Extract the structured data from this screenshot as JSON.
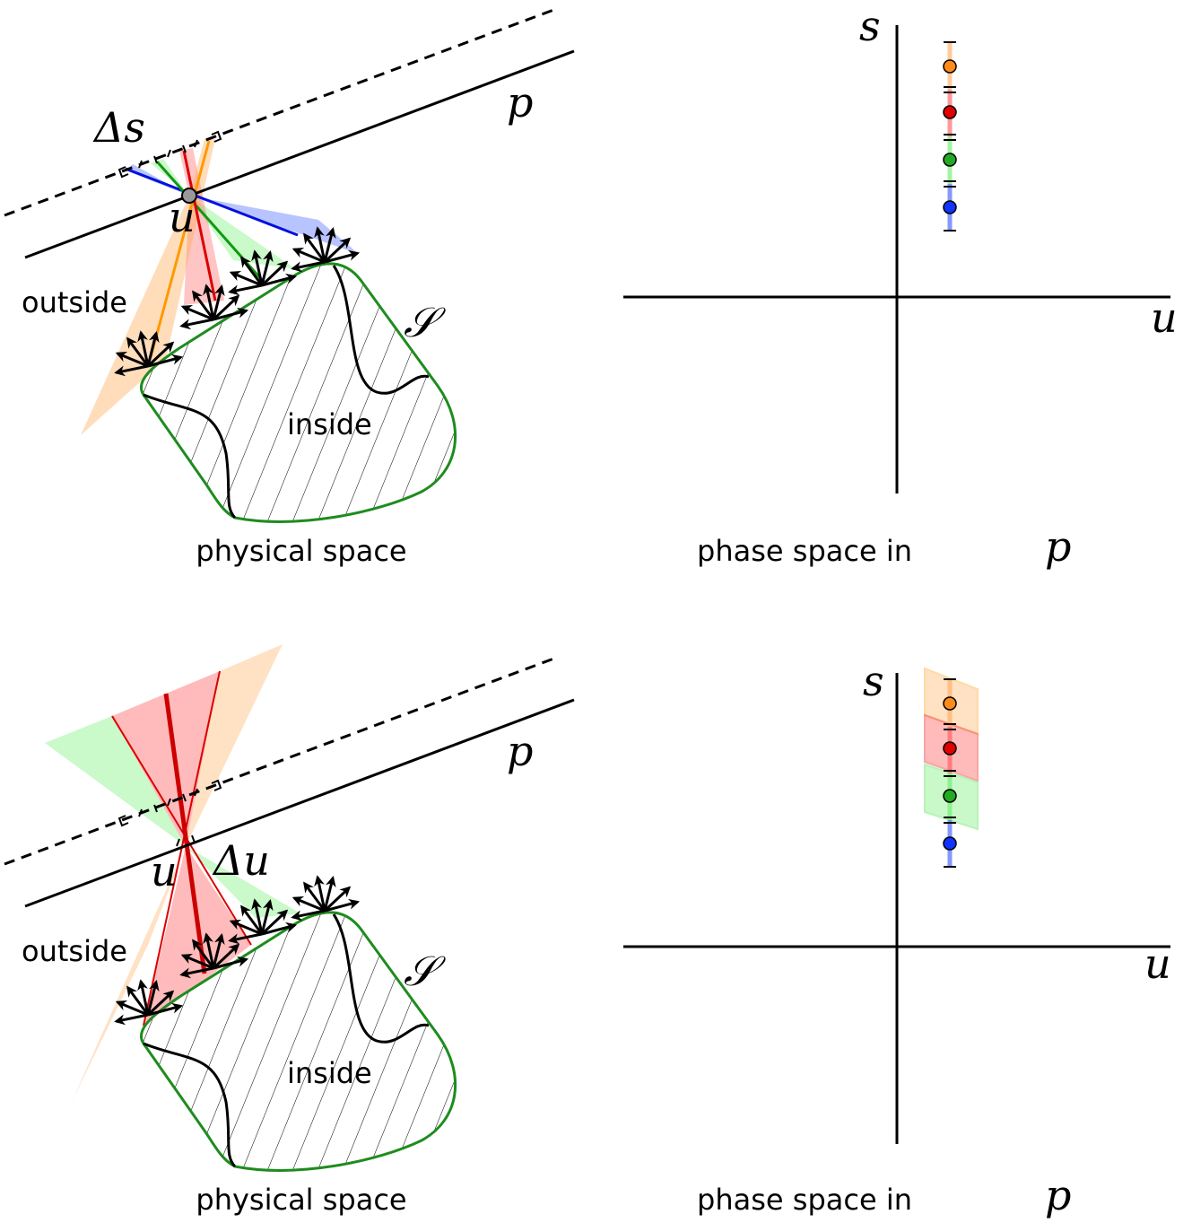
{
  "panels": [
    {
      "physical": {
        "delta_label": "Δs",
        "line_label": "p",
        "point_label": "u",
        "outside_label": "outside",
        "set_label": "𝒮",
        "inside_label": "inside",
        "caption": "physical space"
      },
      "phase": {
        "s_axis": "s",
        "u_axis": "u",
        "caption": "phase space in",
        "caption_symbol": "p"
      }
    },
    {
      "physical": {
        "delta_label": "Δu",
        "line_label": "p",
        "point_label": "u",
        "outside_label": "outside",
        "set_label": "𝒮",
        "inside_label": "inside",
        "caption": "physical space"
      },
      "phase": {
        "s_axis": "s",
        "u_axis": "u",
        "caption": "phase space in",
        "caption_symbol": "p"
      }
    }
  ]
}
